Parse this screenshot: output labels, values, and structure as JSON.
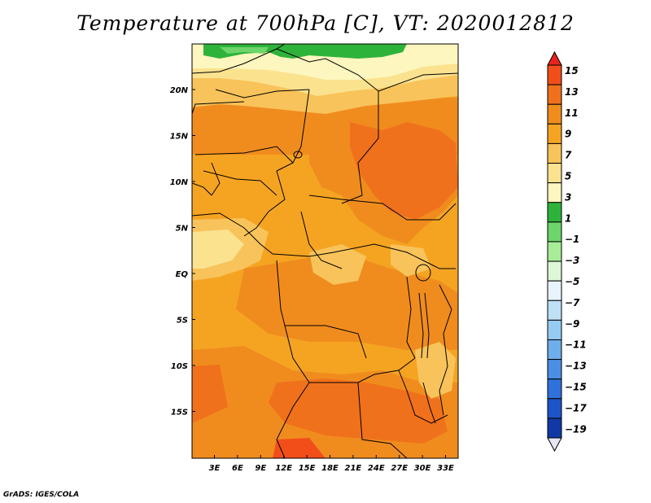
{
  "title": "Temperature at 700hPa [C], VT: 2020012812",
  "credit": "GrADS: IGES/COLA",
  "lat_labels": [
    "20N",
    "15N",
    "10N",
    "5N",
    "EQ",
    "5S",
    "10S",
    "15S"
  ],
  "lon_labels": [
    "3E",
    "6E",
    "9E",
    "12E",
    "15E",
    "18E",
    "21E",
    "24E",
    "27E",
    "30E",
    "33E"
  ],
  "colorbar": {
    "labels": [
      "15",
      "13",
      "11",
      "9",
      "7",
      "5",
      "3",
      "1",
      "−1",
      "−3",
      "−5",
      "−7",
      "−9",
      "−11",
      "−13",
      "−15",
      "−17",
      "−19"
    ],
    "colors": [
      "#e8231d",
      "#f24e1a",
      "#f0711b",
      "#f08c1e",
      "#f5a422",
      "#f8c35a",
      "#fbe28f",
      "#fdf6bf",
      "#2eb33a",
      "#6dd56a",
      "#a8ec98",
      "#dcf8d6",
      "#e8f4fb",
      "#bfe1f6",
      "#96cbf1",
      "#6eaeeb",
      "#4a8fe3",
      "#2f72db",
      "#1c55c8",
      "#1238a5",
      "#0a1b78"
    ]
  }
}
